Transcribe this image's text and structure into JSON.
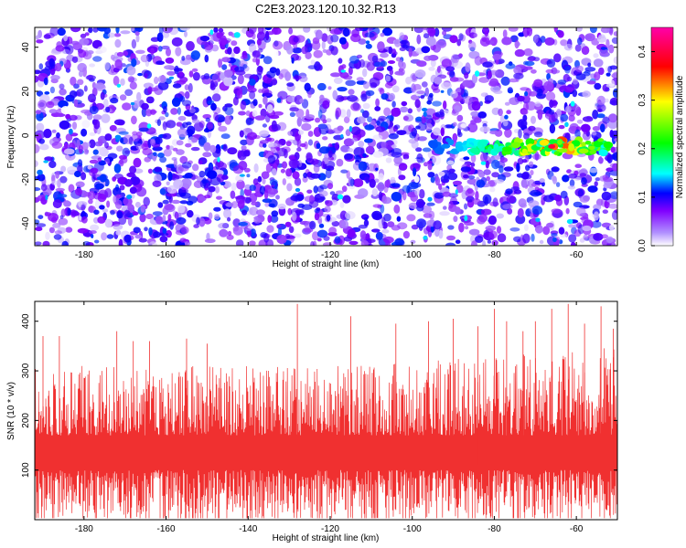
{
  "title": "C2E3.2023.120.10.32.R13",
  "chart_data": [
    {
      "type": "heatmap",
      "xlabel": "Height of straight line (km)",
      "ylabel": "Frequency (Hz)",
      "xlim": [
        -192,
        -50
      ],
      "ylim": [
        -50,
        49
      ],
      "x_ticks": [
        -180,
        -160,
        -140,
        -120,
        -100,
        -80,
        -60
      ],
      "y_ticks": [
        -40,
        -20,
        0,
        20,
        40
      ],
      "colorbar": {
        "label": "Normalized spectral amplitude",
        "range": [
          0.0,
          0.45
        ],
        "ticks": [
          0.0,
          0.1,
          0.2,
          0.3,
          0.4
        ],
        "colors": [
          "#ffffff",
          "#b090ff",
          "#8000ff",
          "#0000ff",
          "#00ffff",
          "#00ff00",
          "#ffff00",
          "#ff0000",
          "#ff00aa"
        ]
      },
      "features": [
        {
          "description_value": "noise",
          "x_range": [
            -192,
            -50
          ],
          "y_range": [
            -50,
            49
          ],
          "amplitude_range": [
            0.0,
            0.12
          ]
        },
        {
          "description_value": "signal",
          "x_range": [
            -95,
            -52
          ],
          "y_center": -5,
          "amplitude_range": [
            0.12,
            0.4
          ],
          "peak_x": -66,
          "peak_amplitude": 0.4
        }
      ]
    },
    {
      "type": "line",
      "xlabel": "Height of straight line (km)",
      "ylabel": "SNR (10 * v/v)",
      "xlim": [
        -192,
        -50
      ],
      "ylim": [
        0,
        440
      ],
      "x_ticks": [
        -180,
        -160,
        -140,
        -120,
        -100,
        -80,
        -60
      ],
      "y_ticks": [
        100,
        200,
        300,
        400
      ],
      "series": [
        {
          "color": "#f03030",
          "x_range": [
            -192,
            -50
          ],
          "baseline": 130,
          "typical_range": [
            40,
            250
          ],
          "peaks": [
            {
              "x": -190,
              "y": 370
            },
            {
              "x": -186,
              "y": 370
            },
            {
              "x": -172,
              "y": 380
            },
            {
              "x": -168,
              "y": 360
            },
            {
              "x": -164,
              "y": 360
            },
            {
              "x": -155,
              "y": 365
            },
            {
              "x": -150,
              "y": 355
            },
            {
              "x": -128,
              "y": 435
            },
            {
              "x": -115,
              "y": 410
            },
            {
              "x": -104,
              "y": 395
            },
            {
              "x": -96,
              "y": 400
            },
            {
              "x": -90,
              "y": 405
            },
            {
              "x": -84,
              "y": 390
            },
            {
              "x": -80,
              "y": 425
            },
            {
              "x": -77,
              "y": 400
            },
            {
              "x": -73,
              "y": 380
            },
            {
              "x": -70,
              "y": 400
            },
            {
              "x": -66,
              "y": 425
            },
            {
              "x": -62,
              "y": 435
            },
            {
              "x": -58,
              "y": 395
            },
            {
              "x": -54,
              "y": 430
            },
            {
              "x": -51,
              "y": 385
            }
          ]
        }
      ]
    }
  ]
}
